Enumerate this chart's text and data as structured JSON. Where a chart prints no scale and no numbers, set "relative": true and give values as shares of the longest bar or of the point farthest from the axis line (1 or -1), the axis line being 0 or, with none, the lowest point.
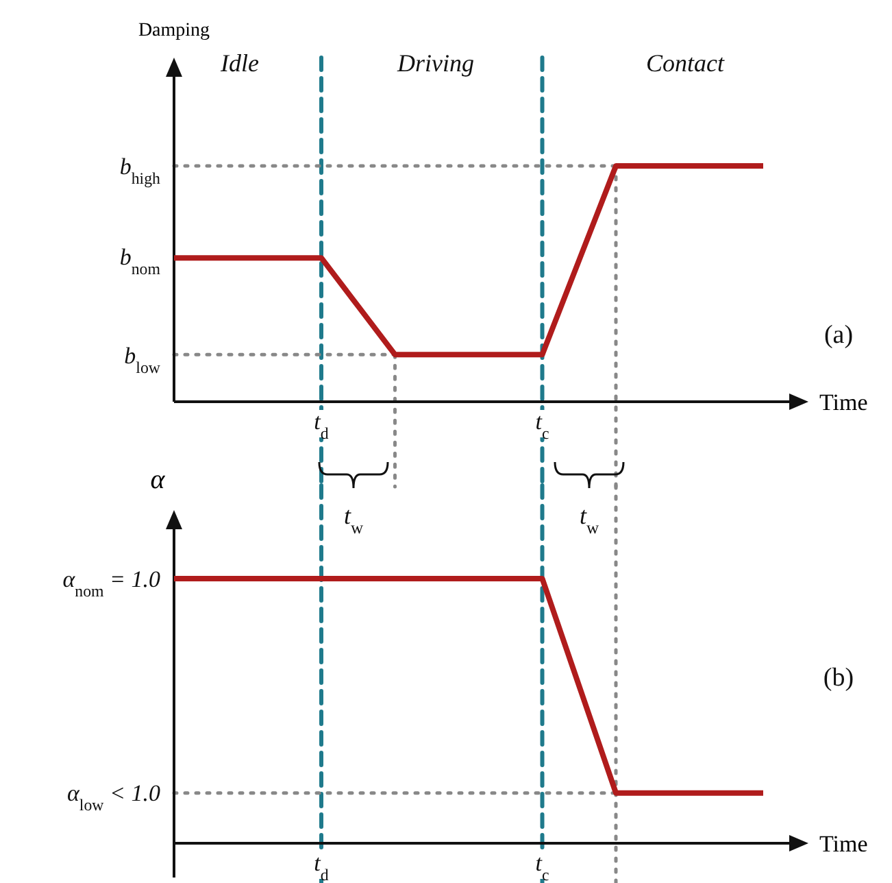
{
  "chart_data": [
    {
      "type": "line",
      "relative": true,
      "ylabel": "Damping",
      "xlabel": "Time",
      "categories": [
        null,
        null,
        null,
        null,
        "t$_{d}$",
        null,
        null,
        null,
        null,
        null,
        "t$_{c}$",
        null,
        null,
        null,
        null,
        null,
        null
      ],
      "values": [
        0.61,
        0.61,
        0.61,
        0.61,
        0.61,
        0.405,
        0.2,
        0.2,
        0.2,
        0.2,
        0.2,
        0.6,
        1,
        1,
        1,
        1,
        1
      ],
      "color": "#b01c1c",
      "ref_lines": [
        {
          "axis": "x",
          "value": "t$_{d}$",
          "color": "#1f7a8c",
          "line_style": "dashed"
        },
        {
          "axis": "x",
          "value": "t$_{c}$",
          "color": "#1f7a8c",
          "line_style": "dashed"
        },
        {
          "axis": "y",
          "value": 1,
          "color": "#888888",
          "line_style": "dotted"
        },
        {
          "axis": "y",
          "value": 0.2,
          "color": "#888888",
          "line_style": "dotted"
        }
      ],
      "annotations": [
        "Idle",
        "Driving",
        "Contact",
        "(a)",
        "t$_{w}$",
        "t$_{w}$",
        "b$_{high}$",
        "b$_{nom}$",
        "b$_{low}$"
      ]
    },
    {
      "type": "line",
      "relative": true,
      "ylabel": "α",
      "xlabel": "Time",
      "categories": [
        null,
        null,
        null,
        null,
        "t$_{d}$",
        null,
        null,
        null,
        null,
        null,
        "t$_{c}$",
        null,
        null,
        null,
        null,
        null,
        null
      ],
      "values": [
        1,
        1,
        1,
        1,
        1,
        1,
        1,
        1,
        1,
        1,
        1,
        0.595,
        0.19,
        0.19,
        0.19,
        0.19,
        0.19
      ],
      "color": "#b01c1c",
      "ref_lines": [
        {
          "axis": "x",
          "value": "t$_{d}$",
          "color": "#1f7a8c",
          "line_style": "dashed"
        },
        {
          "axis": "x",
          "value": "t$_{c}$",
          "color": "#1f7a8c",
          "line_style": "dashed"
        },
        {
          "axis": "y",
          "value": 0.19,
          "color": "#888888",
          "line_style": "dotted"
        }
      ],
      "annotations": [
        "(b)",
        "α$_{nom}$ = 1.0",
        "α$_{low}$ < 1.0"
      ]
    }
  ]
}
